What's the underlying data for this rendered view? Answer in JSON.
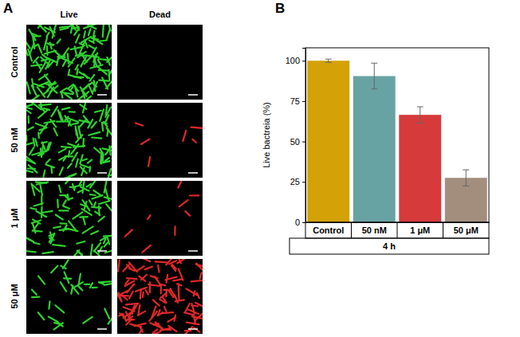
{
  "panel_a": {
    "label": "A",
    "columns": [
      "Live",
      "Dead"
    ],
    "rows": [
      "Control",
      "50 nM",
      "1 μM",
      "50 μM"
    ]
  },
  "chart_data": {
    "type": "bar",
    "label": "B",
    "categories": [
      "Control",
      "50 nM",
      "1 μM",
      "50 μM"
    ],
    "values": [
      100,
      90.5,
      66.5,
      27.5
    ],
    "errors": [
      1,
      8,
      5,
      5
    ],
    "colors": [
      "#d4a106",
      "#68a3a3",
      "#d63a3a",
      "#a38e7e"
    ],
    "y_label": "Live bactreia (%)",
    "x_group": "4 h",
    "ylim": [
      0,
      108
    ],
    "yticks": [
      0,
      25,
      50,
      75,
      100
    ],
    "grid": false
  }
}
